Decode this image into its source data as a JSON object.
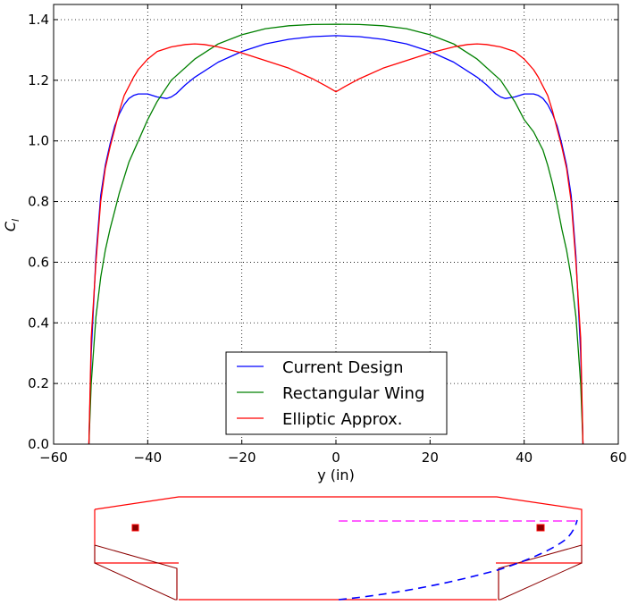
{
  "chart_data": {
    "type": "line",
    "xlabel": "y (in)",
    "ylabel": "C_l",
    "xlim": [
      -60,
      60
    ],
    "ylim": [
      0.0,
      1.45
    ],
    "xticks": [
      "−60",
      "−40",
      "−20",
      "0",
      "20",
      "40",
      "60"
    ],
    "xtick_values": [
      -60,
      -40,
      -20,
      0,
      20,
      40,
      60
    ],
    "yticks": [
      "0.0",
      "0.2",
      "0.4",
      "0.6",
      "0.8",
      "1.0",
      "1.2",
      "1.4"
    ],
    "ytick_values": [
      0.0,
      0.2,
      0.4,
      0.6,
      0.8,
      1.0,
      1.2,
      1.4
    ],
    "grid": true,
    "legend_position": "bottom-center",
    "series": [
      {
        "name": "Current Design",
        "color": "#0000ff",
        "x": [
          -52.5,
          -52,
          -51,
          -50,
          -49,
          -48,
          -47,
          -46,
          -45,
          -44,
          -43,
          -42,
          -40,
          -38,
          -36,
          -35,
          -34,
          -32,
          -30,
          -25,
          -20,
          -15,
          -10,
          -5,
          0,
          5,
          10,
          15,
          20,
          25,
          30,
          32,
          34,
          35,
          36,
          38,
          40,
          42,
          43,
          44,
          45,
          46,
          47,
          48,
          49,
          50,
          51,
          52,
          52.5
        ],
        "y": [
          0.0,
          0.3,
          0.62,
          0.82,
          0.92,
          0.99,
          1.05,
          1.09,
          1.12,
          1.14,
          1.15,
          1.155,
          1.155,
          1.145,
          1.14,
          1.145,
          1.155,
          1.185,
          1.21,
          1.26,
          1.295,
          1.32,
          1.335,
          1.344,
          1.347,
          1.344,
          1.335,
          1.32,
          1.295,
          1.26,
          1.21,
          1.185,
          1.155,
          1.145,
          1.14,
          1.145,
          1.155,
          1.155,
          1.15,
          1.14,
          1.12,
          1.09,
          1.05,
          0.99,
          0.92,
          0.82,
          0.62,
          0.3,
          0.0
        ]
      },
      {
        "name": "Rectangular Wing",
        "color": "#008000",
        "x": [
          -52.5,
          -52,
          -51,
          -50,
          -49,
          -48,
          -47,
          -46,
          -45,
          -44,
          -42,
          -40,
          -38,
          -35,
          -30,
          -25,
          -20,
          -15,
          -10,
          -5,
          0,
          5,
          10,
          15,
          20,
          25,
          30,
          35,
          38,
          40,
          42,
          44,
          45,
          46,
          47,
          48,
          49,
          50,
          51,
          52,
          52.5
        ],
        "y": [
          0.0,
          0.2,
          0.42,
          0.55,
          0.64,
          0.71,
          0.77,
          0.83,
          0.88,
          0.93,
          1.0,
          1.07,
          1.13,
          1.2,
          1.27,
          1.32,
          1.35,
          1.37,
          1.38,
          1.384,
          1.385,
          1.384,
          1.38,
          1.37,
          1.35,
          1.32,
          1.27,
          1.2,
          1.13,
          1.07,
          1.03,
          0.97,
          0.92,
          0.86,
          0.79,
          0.71,
          0.64,
          0.55,
          0.42,
          0.2,
          0.0
        ]
      },
      {
        "name": "Elliptic Approx.",
        "color": "#ff0000",
        "x": [
          -52.5,
          -52,
          -51,
          -50,
          -49,
          -48,
          -47,
          -46,
          -45,
          -44,
          -43,
          -42,
          -40,
          -38,
          -35,
          -32,
          -30,
          -28,
          -25,
          -20,
          -15,
          -10,
          -5,
          -2,
          0,
          2,
          5,
          10,
          15,
          20,
          25,
          28,
          30,
          32,
          35,
          38,
          40,
          42,
          43,
          44,
          45,
          46,
          47,
          48,
          49,
          50,
          51,
          52,
          52.5
        ],
        "y": [
          0.0,
          0.35,
          0.6,
          0.8,
          0.91,
          0.98,
          1.04,
          1.1,
          1.15,
          1.18,
          1.21,
          1.235,
          1.27,
          1.295,
          1.31,
          1.318,
          1.32,
          1.318,
          1.31,
          1.29,
          1.265,
          1.24,
          1.205,
          1.18,
          1.162,
          1.18,
          1.205,
          1.24,
          1.265,
          1.29,
          1.31,
          1.318,
          1.32,
          1.318,
          1.31,
          1.295,
          1.27,
          1.235,
          1.21,
          1.18,
          1.15,
          1.1,
          1.04,
          0.98,
          0.91,
          0.8,
          0.6,
          0.35,
          0.0
        ]
      }
    ]
  },
  "planform": {
    "outline_color": "#ff0000",
    "edge_color": "#8b0000",
    "lift_line_color": "#0000ff",
    "reference_line_color": "#ff00ff"
  }
}
